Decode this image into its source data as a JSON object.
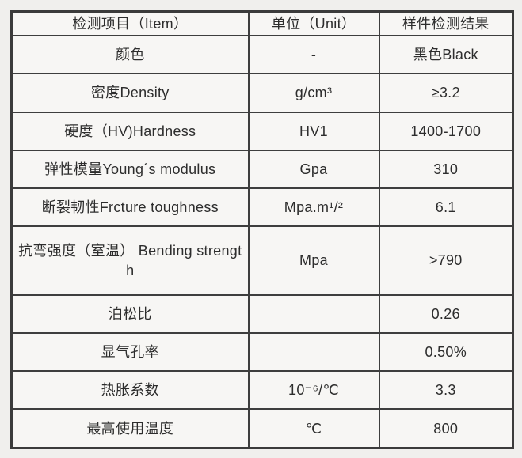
{
  "table": {
    "header": {
      "item": "检测项目（Item）",
      "unit": "单位（Unit）",
      "result": "样件检测结果"
    },
    "rows": [
      {
        "item": "颜色",
        "unit": "-",
        "result": "黑色Black"
      },
      {
        "item": "密度Density",
        "unit": "g/cm³",
        "result": "≥3.2"
      },
      {
        "item": "硬度（HV)Hardness",
        "unit": "HV1",
        "result": "1400-1700"
      },
      {
        "item": "弹性模量Young´s modulus",
        "unit": "Gpa",
        "result": "310"
      },
      {
        "item": "断裂韧性Frcture toughness",
        "unit": "Mpa.m¹/²",
        "result": "6.1"
      },
      {
        "item": "抗弯强度（室温） Bending strengt\nh",
        "unit": "Mpa",
        "result": ">790"
      },
      {
        "item": "泊松比",
        "unit": "",
        "result": "0.26"
      },
      {
        "item": "显气孔率",
        "unit": "",
        "result": "0.50%"
      },
      {
        "item": "热胀系数",
        "unit": "10⁻⁶/℃",
        "result": "3.3"
      },
      {
        "item": "最高使用温度",
        "unit": "℃",
        "result": "800"
      }
    ]
  },
  "colors": {
    "page_background": "#f0efed",
    "cell_background": "#f7f6f4",
    "border": "#3e3e3e",
    "text": "#2d2d2d"
  }
}
